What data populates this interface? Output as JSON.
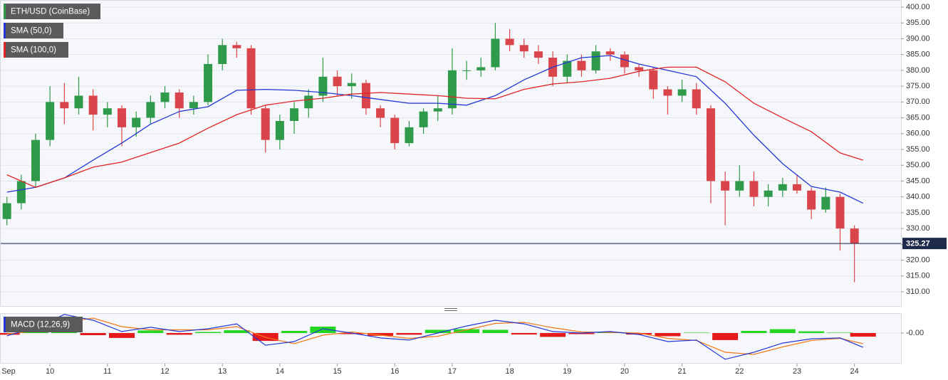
{
  "chart_data": [
    {
      "type": "candlestick",
      "title": "ETH/USD (CoinBase)",
      "up_color": "#2e9a4a",
      "down_color": "#d9454a",
      "x": [
        9.25,
        9.5,
        9.75,
        10,
        10.25,
        10.5,
        10.75,
        11,
        11.25,
        11.5,
        11.75,
        12,
        12.25,
        12.5,
        12.75,
        13,
        13.25,
        13.5,
        13.75,
        14,
        14.25,
        14.5,
        14.75,
        15,
        15.25,
        15.5,
        15.75,
        16,
        16.25,
        16.5,
        16.75,
        17,
        17.25,
        17.5,
        17.75,
        18,
        18.25,
        18.5,
        18.75,
        19,
        19.25,
        19.5,
        19.75,
        20,
        20.25,
        20.5,
        20.75,
        21,
        21.25,
        21.5,
        21.75,
        22,
        22.25,
        22.5,
        22.75,
        23,
        23.25,
        23.5,
        23.75,
        24
      ],
      "open": [
        333,
        338,
        345,
        358,
        370,
        368,
        372,
        366,
        368,
        362,
        365,
        370,
        373,
        368,
        370,
        382,
        388,
        387,
        368,
        358,
        364,
        368,
        372,
        378,
        375,
        376,
        368,
        365,
        357,
        362,
        367,
        368,
        380,
        380,
        381,
        390,
        388,
        386,
        384,
        378,
        383,
        380,
        386,
        385,
        381,
        380,
        374,
        372,
        374,
        368,
        345,
        342,
        345,
        340,
        342,
        344,
        342,
        336,
        340,
        330
      ],
      "high": [
        340,
        347,
        360,
        375,
        376,
        378,
        374,
        370,
        369,
        367,
        372,
        375,
        374,
        372,
        385,
        390,
        389,
        388,
        369,
        366,
        370,
        374,
        384,
        380,
        379,
        377,
        369,
        366,
        364,
        368,
        372,
        387,
        383,
        384,
        395,
        393,
        390,
        388,
        386,
        385,
        385,
        388,
        387,
        386,
        382,
        381,
        375,
        377,
        376,
        369,
        348,
        350,
        348,
        344,
        346,
        347,
        343,
        343,
        341,
        331
      ],
      "low": [
        331,
        336,
        343,
        356,
        363,
        366,
        361,
        362,
        356,
        359,
        363,
        368,
        365,
        366,
        369,
        380,
        384,
        366,
        354,
        355,
        360,
        365,
        370,
        372,
        371,
        366,
        362,
        355,
        356,
        360,
        364,
        366,
        377,
        378,
        380,
        386,
        384,
        382,
        375,
        376,
        378,
        379,
        383,
        379,
        378,
        371,
        366,
        370,
        366,
        338,
        331,
        340,
        337,
        337,
        340,
        341,
        333,
        335,
        323,
        313
      ],
      "close": [
        338,
        345,
        358,
        370,
        368,
        372,
        366,
        368,
        362,
        365,
        370,
        373,
        368,
        370,
        382,
        388,
        387,
        368,
        358,
        364,
        368,
        372,
        378,
        375,
        376,
        368,
        365,
        357,
        362,
        367,
        368,
        380,
        380,
        381,
        390,
        388,
        386,
        384,
        378,
        383,
        380,
        386,
        385,
        381,
        380,
        374,
        372,
        374,
        368,
        345,
        342,
        345,
        340,
        342,
        344,
        342,
        336,
        340,
        330,
        325.27
      ],
      "last_price": 325.27,
      "last_price_color": "#1e2a4a",
      "series": [
        {
          "name": "SMA (50,0)",
          "color": "#2437d6",
          "x": [
            9.25,
            9.75,
            10.25,
            10.75,
            11.25,
            11.75,
            12.25,
            12.75,
            13.25,
            13.75,
            14.25,
            14.75,
            15.25,
            15.75,
            16.25,
            16.75,
            17.25,
            17.75,
            18.25,
            18.75,
            19.25,
            19.75,
            20.25,
            20.75,
            21.25,
            21.75,
            22.25,
            22.75,
            23.25,
            23.75,
            24.15
          ],
          "values": [
            341.5,
            343,
            346,
            351.6,
            357,
            363,
            367,
            368.5,
            373.7,
            374,
            373.7,
            373,
            372,
            370.8,
            369.6,
            369.6,
            369,
            372,
            377,
            381,
            384,
            384.7,
            382,
            380,
            378,
            369.6,
            359.5,
            350.5,
            343.3,
            341.5,
            338
          ]
        },
        {
          "name": "SMA (100,0)",
          "color": "#e02424",
          "x": [
            9.25,
            9.75,
            10.25,
            10.75,
            11.25,
            11.75,
            12.25,
            12.75,
            13.25,
            13.75,
            14.25,
            14.75,
            15.25,
            15.75,
            16.25,
            16.75,
            17.25,
            17.75,
            18.25,
            18.75,
            19.25,
            19.75,
            20.25,
            20.75,
            21.25,
            21.75,
            22.25,
            22.75,
            23.25,
            23.75,
            24.15
          ],
          "values": [
            347,
            343,
            346,
            349.4,
            351,
            354,
            357,
            361.7,
            366,
            369,
            370.3,
            371.2,
            372.5,
            373,
            372.5,
            372,
            371.2,
            371,
            374,
            375.7,
            376.4,
            377.5,
            379.7,
            381,
            381,
            376.4,
            369.6,
            365,
            360.6,
            353.9,
            351.6
          ]
        }
      ],
      "xlim": [
        9.13,
        24.81
      ],
      "ylim": [
        305.5,
        402.25
      ],
      "grid": true,
      "yticks": [
        {
          "value": 310,
          "label": "310.00"
        },
        {
          "value": 315,
          "label": "315.00"
        },
        {
          "value": 320,
          "label": "320.00"
        },
        {
          "value": 325,
          "label": "325.00"
        },
        {
          "value": 330,
          "label": "330.00"
        },
        {
          "value": 335,
          "label": "335.00"
        },
        {
          "value": 340,
          "label": "340.00"
        },
        {
          "value": 345,
          "label": "345.00"
        },
        {
          "value": 350,
          "label": "350.00"
        },
        {
          "value": 355,
          "label": "355.00"
        },
        {
          "value": 360,
          "label": "360.00"
        },
        {
          "value": 365,
          "label": "365.00"
        },
        {
          "value": 370,
          "label": "370.00"
        },
        {
          "value": 375,
          "label": "375.00"
        },
        {
          "value": 380,
          "label": "380.00"
        },
        {
          "value": 385,
          "label": "385.00"
        },
        {
          "value": 390,
          "label": "390.00"
        },
        {
          "value": 395,
          "label": "395.00"
        },
        {
          "value": 400,
          "label": "400.00"
        }
      ]
    },
    {
      "type": "macd",
      "title": "MACD (12,26,9)",
      "macd_color": "#2437d6",
      "signal_color": "#f07a1a",
      "hist_up_color": "#22d622",
      "hist_down_color": "#e61a1a",
      "x": [
        9.25,
        9.75,
        10.25,
        10.75,
        11.25,
        11.75,
        12.25,
        12.75,
        13.25,
        13.75,
        14.25,
        14.75,
        15.25,
        15.75,
        16.25,
        16.75,
        17.25,
        17.75,
        18.25,
        18.75,
        19.25,
        19.75,
        20.25,
        20.75,
        21.25,
        21.75,
        22.25,
        22.75,
        23.25,
        23.75,
        24.15
      ],
      "macd": [
        -1.3,
        2.7,
        8.7,
        6,
        0.7,
        2.7,
        0.7,
        2,
        4.3,
        -5.7,
        -4,
        2,
        0,
        -2.3,
        -3.3,
        0,
        3.3,
        6,
        4.3,
        0.7,
        0,
        0.7,
        -0.7,
        -4,
        -3.3,
        -12.3,
        -9,
        -4.7,
        -2.7,
        -2.3,
        -6.7
      ],
      "signal": [
        -0.5,
        1,
        5,
        7,
        3,
        1.5,
        1.5,
        1.5,
        3,
        -2,
        -5,
        -1,
        0.5,
        -1,
        -2.5,
        -1.5,
        1.5,
        4.5,
        5,
        2.5,
        0.5,
        0.3,
        0,
        -2.5,
        -3.5,
        -9,
        -10,
        -6.5,
        -3.5,
        -2.5,
        -5
      ],
      "histogram": [
        -0.8,
        1.7,
        3.7,
        -1,
        -2.3,
        1.2,
        -0.8,
        0.5,
        1.3,
        -3.7,
        1,
        3,
        -0.5,
        -1.3,
        -0.8,
        1.5,
        1.8,
        1.5,
        -0.7,
        -1.8,
        -0.5,
        0.4,
        -0.7,
        -1.5,
        0.2,
        -3.3,
        1,
        1.8,
        0.8,
        0.2,
        -1.7
      ],
      "xlim": [
        9.13,
        24.81
      ],
      "ylim": [
        -14,
        9.33
      ],
      "yticks": [
        {
          "value": 0,
          "label": "-0.00"
        }
      ],
      "xticks": [
        {
          "value": 9,
          "label": "Sep"
        },
        10,
        11,
        12,
        13,
        14,
        15,
        16,
        17,
        18,
        19,
        20,
        21,
        22,
        23,
        24
      ]
    }
  ]
}
